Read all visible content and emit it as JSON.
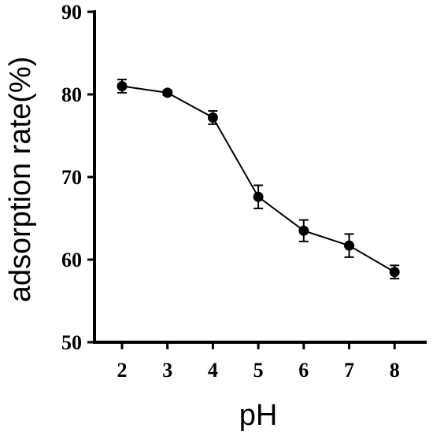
{
  "chart_data": {
    "type": "line",
    "title": "",
    "xlabel": "pH",
    "ylabel": "adsorption rate(%)",
    "x": [
      2,
      3,
      4,
      5,
      6,
      7,
      8
    ],
    "x_ticks": [
      "2",
      "3",
      "4",
      "5",
      "6",
      "7",
      "8"
    ],
    "y_ticks": [
      "50",
      "60",
      "70",
      "80",
      "90"
    ],
    "ylim": [
      50,
      90
    ],
    "xlim": [
      1,
      8.5
    ],
    "grid": false,
    "series": [
      {
        "values": [
          81.0,
          80.2,
          77.2,
          67.6,
          63.5,
          61.7,
          58.5
        ],
        "error": [
          0.8,
          0.3,
          0.8,
          1.4,
          1.3,
          1.4,
          0.8
        ],
        "color": "#000000",
        "marker": "circle"
      }
    ]
  }
}
